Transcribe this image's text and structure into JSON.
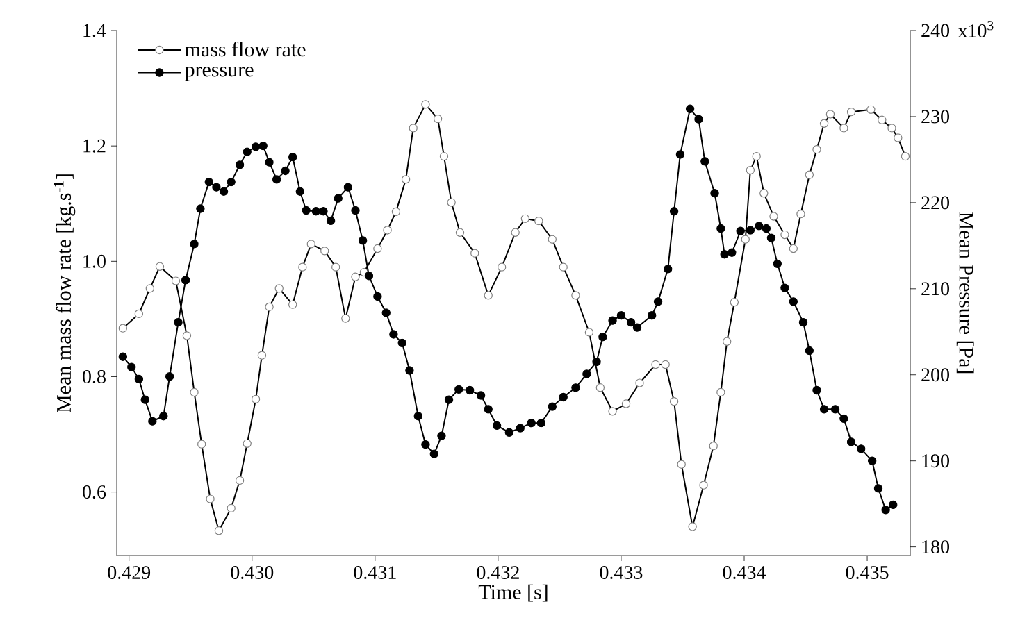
{
  "chart_data": {
    "type": "line",
    "xlabel": "Time [s]",
    "ylabel": "Mean mass flow rate [kg.s$^{-1}$]",
    "y2label": "Mean Pressure [Pa]",
    "xlim": [
      0.4289,
      0.43535
    ],
    "ylim": [
      0.49,
      1.4
    ],
    "y2lim": [
      179,
      240
    ],
    "annotations": [
      "x10$^{3}$"
    ],
    "xticks": [
      {
        "value": 0.429,
        "label": "0.429"
      },
      {
        "value": 0.43,
        "label": "0.430"
      },
      {
        "value": 0.431,
        "label": "0.431"
      },
      {
        "value": 0.432,
        "label": "0.432"
      },
      {
        "value": 0.433,
        "label": "0.433"
      },
      {
        "value": 0.434,
        "label": "0.434"
      },
      {
        "value": 0.435,
        "label": "0.435"
      }
    ],
    "yticks": [
      {
        "value": 0.6,
        "label": "0.6"
      },
      {
        "value": 0.8,
        "label": "0.8"
      },
      {
        "value": 1.0,
        "label": "1.0"
      },
      {
        "value": 1.2,
        "label": "1.2"
      },
      {
        "value": 1.4,
        "label": "1.4"
      }
    ],
    "y2ticks": [
      180,
      190,
      200,
      210,
      220,
      230,
      240
    ],
    "grid": false,
    "legend": "top left",
    "marker": "circle",
    "line_style": "solid",
    "series": [
      {
        "name": "mass flow rate",
        "color": "#808080",
        "axis": "y",
        "x": [
          0.42895,
          0.42908,
          0.42917,
          0.42925,
          0.42938,
          0.42947,
          0.42953,
          0.42959,
          0.42966,
          0.42973,
          0.42983,
          0.4299,
          0.42996,
          0.43003,
          0.43008,
          0.43014,
          0.43022,
          0.43033,
          0.43041,
          0.43048,
          0.43059,
          0.43068,
          0.43076,
          0.43084,
          0.43091,
          0.43102,
          0.4311,
          0.43117,
          0.43125,
          0.43131,
          0.43141,
          0.43151,
          0.43156,
          0.43162,
          0.43169,
          0.43181,
          0.43192,
          0.43203,
          0.43214,
          0.43222,
          0.43233,
          0.43244,
          0.43253,
          0.43263,
          0.43274,
          0.43283,
          0.43293,
          0.43304,
          0.43315,
          0.43328,
          0.43336,
          0.43343,
          0.43349,
          0.43358,
          0.43367,
          0.43375,
          0.43381,
          0.43386,
          0.43392,
          0.43401,
          0.43405,
          0.4341,
          0.43416,
          0.43424,
          0.43433,
          0.4344,
          0.43446,
          0.43453,
          0.43459,
          0.43465,
          0.4347,
          0.43481,
          0.43487,
          0.43503,
          0.43512,
          0.4352,
          0.43525,
          0.43531
        ],
        "values": [
          0.884,
          0.909,
          0.953,
          0.991,
          0.966,
          0.871,
          0.773,
          0.683,
          0.588,
          0.533,
          0.572,
          0.62,
          0.684,
          0.761,
          0.837,
          0.921,
          0.953,
          0.925,
          0.99,
          1.03,
          1.018,
          0.99,
          0.901,
          0.973,
          0.981,
          1.022,
          1.054,
          1.086,
          1.142,
          1.231,
          1.272,
          1.247,
          1.182,
          1.102,
          1.05,
          1.014,
          0.941,
          0.99,
          1.05,
          1.074,
          1.07,
          1.038,
          0.99,
          0.941,
          0.877,
          0.781,
          0.74,
          0.753,
          0.789,
          0.821,
          0.821,
          0.757,
          0.648,
          0.54,
          0.612,
          0.68,
          0.773,
          0.861,
          0.929,
          1.038,
          1.158,
          1.182,
          1.118,
          1.078,
          1.046,
          1.022,
          1.082,
          1.15,
          1.194,
          1.239,
          1.255,
          1.231,
          1.259,
          1.263,
          1.245,
          1.231,
          1.214,
          1.182
        ]
      },
      {
        "name": "pressure",
        "color": "#000000",
        "axis": "y2",
        "x": [
          0.42895,
          0.42902,
          0.42908,
          0.42913,
          0.42919,
          0.42928,
          0.42933,
          0.4294,
          0.42946,
          0.42953,
          0.42958,
          0.42965,
          0.42971,
          0.42977,
          0.42983,
          0.4299,
          0.42996,
          0.43003,
          0.43009,
          0.43014,
          0.4302,
          0.43027,
          0.43033,
          0.43039,
          0.43044,
          0.43052,
          0.43058,
          0.43064,
          0.4307,
          0.43078,
          0.43084,
          0.4309,
          0.43095,
          0.43102,
          0.43109,
          0.43115,
          0.43122,
          0.43128,
          0.43135,
          0.43141,
          0.43148,
          0.43154,
          0.4316,
          0.43168,
          0.43177,
          0.43186,
          0.43192,
          0.43199,
          0.43209,
          0.43218,
          0.43227,
          0.43235,
          0.43244,
          0.43253,
          0.43263,
          0.43272,
          0.4328,
          0.43285,
          0.43293,
          0.433,
          0.43308,
          0.43313,
          0.43325,
          0.4333,
          0.43338,
          0.43343,
          0.43348,
          0.43356,
          0.43363,
          0.43368,
          0.43376,
          0.43381,
          0.43384,
          0.4339,
          0.43397,
          0.43405,
          0.43412,
          0.43418,
          0.43422,
          0.43427,
          0.43433,
          0.4344,
          0.43448,
          0.43453,
          0.43459,
          0.43465,
          0.43474,
          0.43481,
          0.43487,
          0.43495,
          0.43504,
          0.43509,
          0.43515,
          0.43521
        ],
        "values": [
          202.1,
          200.9,
          199.5,
          197.1,
          194.6,
          195.2,
          199.8,
          206.1,
          211.0,
          215.2,
          219.3,
          222.4,
          221.8,
          221.3,
          222.4,
          224.4,
          225.9,
          226.5,
          226.6,
          224.7,
          222.7,
          223.7,
          225.3,
          221.3,
          219.1,
          219.0,
          219.0,
          217.9,
          220.5,
          221.8,
          219.1,
          215.6,
          211.5,
          209.1,
          207.2,
          204.7,
          203.7,
          200.5,
          195.2,
          191.9,
          190.8,
          192.9,
          197.1,
          198.3,
          198.2,
          197.6,
          196.0,
          194.1,
          193.3,
          193.8,
          194.4,
          194.4,
          196.3,
          197.4,
          198.5,
          200.1,
          201.5,
          204.4,
          206.3,
          206.9,
          206.1,
          205.5,
          206.9,
          208.5,
          212.3,
          219.0,
          225.6,
          230.9,
          229.7,
          224.8,
          221.1,
          217.0,
          214.0,
          214.2,
          216.7,
          216.8,
          217.3,
          217.0,
          215.9,
          212.9,
          210.1,
          208.5,
          206.1,
          202.8,
          198.2,
          196.0,
          196.0,
          194.9,
          192.2,
          191.4,
          190.0,
          186.8,
          184.3,
          184.9
        ]
      }
    ]
  }
}
